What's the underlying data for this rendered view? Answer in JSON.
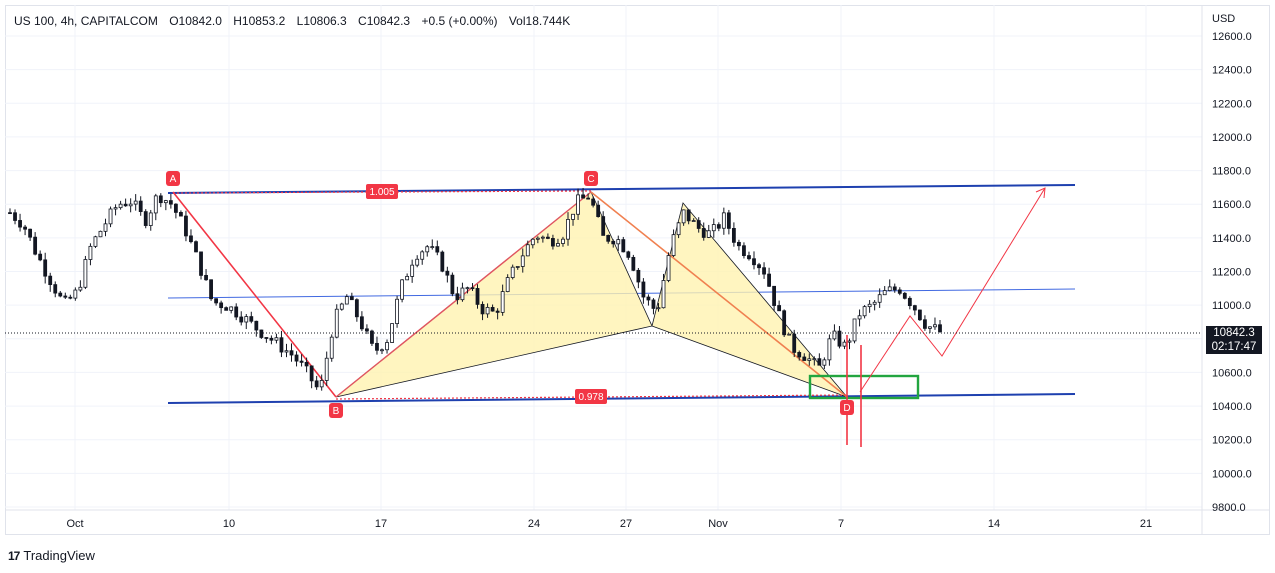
{
  "legend": {
    "symbol": "US 100, 4h, CAPITALCOM",
    "open": "O10842.0",
    "high": "H10853.2",
    "low": "L10806.3",
    "close": "C10842.3",
    "change": "+0.5 (+0.00%)",
    "volume": "Vol18.744K"
  },
  "currency": "USD",
  "last_price": "10842.3",
  "countdown": "02:17:47",
  "brand": "TradingView",
  "colors": {
    "up": "#131722",
    "down": "#131722",
    "channel": "#1e40af",
    "pattern_line": "#f23645",
    "pattern_fill": "#fff3b0",
    "target_box": "#22a540"
  },
  "chart_data": {
    "type": "candlestick",
    "y_axis": {
      "ticks": [
        9800,
        10000,
        10200,
        10400,
        10600,
        10800,
        11000,
        11200,
        11400,
        11600,
        11800,
        12000,
        12200,
        12400,
        12600
      ],
      "tick_labels": [
        "9800.0",
        "10000.0",
        "10200.0",
        "10400.0",
        "10600.0",
        "10800.0",
        "11000.0",
        "11200.0",
        "11400.0",
        "11600.0",
        "11800.0",
        "12000.0",
        "12200.0",
        "12400.0",
        "12600.0"
      ],
      "range": [
        9780,
        12680
      ]
    },
    "x_axis": {
      "tick_labels": [
        "Oct",
        "10",
        "17",
        "24",
        "27",
        "Nov",
        "7",
        "14",
        "21"
      ]
    },
    "price_path": [
      [
        0,
        11550
      ],
      [
        2,
        11480
      ],
      [
        4,
        11300
      ],
      [
        6,
        11150
      ],
      [
        8,
        11000
      ],
      [
        10,
        11080
      ],
      [
        12,
        11350
      ],
      [
        14,
        11480
      ],
      [
        16,
        11600
      ],
      [
        18,
        11620
      ],
      [
        20,
        11500
      ],
      [
        22,
        11660
      ],
      [
        24,
        11600
      ],
      [
        26,
        11450
      ],
      [
        28,
        11250
      ],
      [
        30,
        11020
      ],
      [
        32,
        11000
      ],
      [
        34,
        10950
      ],
      [
        36,
        10880
      ],
      [
        38,
        10820
      ],
      [
        40,
        10760
      ],
      [
        42,
        10700
      ],
      [
        44,
        10600
      ],
      [
        46,
        10480
      ],
      [
        48,
        10900
      ],
      [
        50,
        11050
      ],
      [
        52,
        10900
      ],
      [
        54,
        10720
      ],
      [
        56,
        10800
      ],
      [
        58,
        11100
      ],
      [
        60,
        11300
      ],
      [
        62,
        11350
      ],
      [
        64,
        11250
      ],
      [
        66,
        11050
      ],
      [
        68,
        11100
      ],
      [
        70,
        10980
      ],
      [
        72,
        10950
      ],
      [
        74,
        11150
      ],
      [
        76,
        11300
      ],
      [
        78,
        11420
      ],
      [
        80,
        11380
      ],
      [
        82,
        11420
      ],
      [
        84,
        11610
      ],
      [
        86,
        11650
      ],
      [
        88,
        11400
      ],
      [
        90,
        11400
      ],
      [
        92,
        11300
      ],
      [
        94,
        11050
      ],
      [
        96,
        10960
      ],
      [
        98,
        11350
      ],
      [
        100,
        11550
      ],
      [
        102,
        11460
      ],
      [
        104,
        11420
      ],
      [
        106,
        11520
      ],
      [
        108,
        11350
      ],
      [
        110,
        11300
      ],
      [
        112,
        11200
      ],
      [
        114,
        10950
      ],
      [
        116,
        10750
      ],
      [
        118,
        10700
      ],
      [
        120,
        10620
      ],
      [
        122,
        10820
      ],
      [
        124,
        10750
      ],
      [
        126,
        10950
      ],
      [
        128,
        11000
      ],
      [
        130,
        11080
      ],
      [
        132,
        11100
      ],
      [
        134,
        11000
      ],
      [
        136,
        10880
      ],
      [
        138,
        10842
      ]
    ],
    "pattern": {
      "points": [
        {
          "label": "A",
          "value": 11670
        },
        {
          "label": "B",
          "value": 10440
        },
        {
          "label": "C",
          "value": 11670
        },
        {
          "label": "D",
          "value": 10440
        }
      ],
      "ratios": [
        "1.005",
        "0.978"
      ]
    },
    "channel": {
      "upper": [
        11670,
        11720
      ],
      "middle": [
        11050,
        11100
      ],
      "lower": [
        10420,
        10480
      ]
    },
    "projection": [
      10880,
      10700,
      11710
    ]
  }
}
